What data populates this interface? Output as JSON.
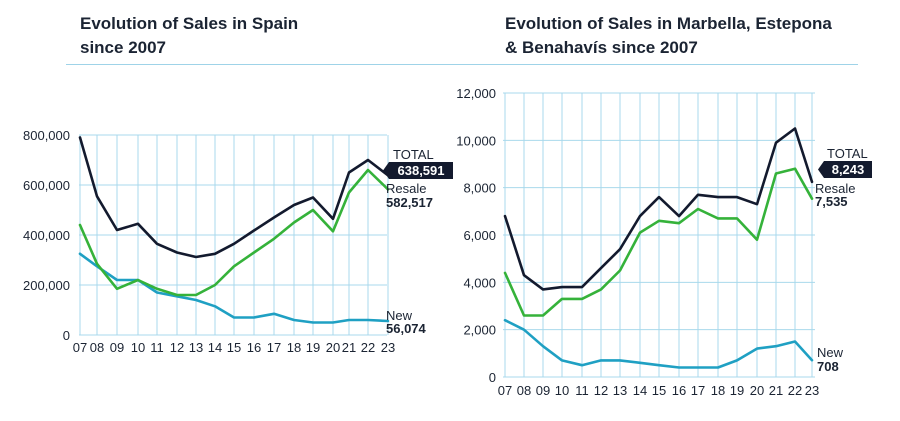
{
  "colors": {
    "total": "#131a2e",
    "resale": "#35b23a",
    "new": "#1fa0c3",
    "grid": "#a9d9ec",
    "badge": "#131a2e"
  },
  "chart_data": [
    {
      "type": "line",
      "title_line1": "Evolution of Sales in Spain",
      "title_line2": "since 2007",
      "categories": [
        "07",
        "08",
        "09",
        "10",
        "11",
        "12",
        "13",
        "14",
        "15",
        "16",
        "17",
        "18",
        "19",
        "20",
        "21",
        "22",
        "23"
      ],
      "ylim": [
        0,
        800000
      ],
      "yticks": [
        0,
        200000,
        400000,
        600000,
        800000
      ],
      "ytick_labels": [
        "0",
        "200,000",
        "400,000",
        "600,000",
        "800,000"
      ],
      "series": [
        {
          "key": "total",
          "name": "TOTAL",
          "value_label": "638,591",
          "values": [
            790000,
            555000,
            420000,
            445000,
            365000,
            330000,
            312000,
            325000,
            365000,
            418000,
            470000,
            520000,
            550000,
            465000,
            650000,
            700000,
            638591
          ]
        },
        {
          "key": "resale",
          "name": "Resale",
          "value_label": "582,517",
          "values": [
            440000,
            285000,
            185000,
            220000,
            185000,
            160000,
            160000,
            200000,
            275000,
            330000,
            385000,
            450000,
            500000,
            415000,
            570000,
            660000,
            582517
          ]
        },
        {
          "key": "new",
          "name": "New",
          "value_label": "56,074",
          "values": [
            325000,
            275000,
            220000,
            220000,
            170000,
            155000,
            140000,
            115000,
            70000,
            70000,
            85000,
            60000,
            50000,
            50000,
            60000,
            60000,
            56074
          ]
        }
      ]
    },
    {
      "type": "line",
      "title_line1": "Evolution of Sales in Marbella, Estepona",
      "title_line2": "& Benahavís since 2007",
      "categories": [
        "07",
        "08",
        "09",
        "10",
        "11",
        "12",
        "13",
        "14",
        "15",
        "16",
        "17",
        "18",
        "19",
        "20",
        "21",
        "22",
        "23"
      ],
      "ylim": [
        0,
        12000
      ],
      "yticks": [
        0,
        2000,
        4000,
        6000,
        8000,
        10000,
        12000
      ],
      "ytick_labels": [
        "0",
        "2,000",
        "4,000",
        "6,000",
        "8,000",
        "10,000",
        "12,000"
      ],
      "series": [
        {
          "key": "total",
          "name": "TOTAL",
          "value_label": "8,243",
          "values": [
            6800,
            4300,
            3700,
            3800,
            3800,
            4600,
            5400,
            6800,
            7600,
            6800,
            7700,
            7600,
            7600,
            7300,
            9900,
            10500,
            8243
          ]
        },
        {
          "key": "resale",
          "name": "Resale",
          "value_label": "7,535",
          "values": [
            4400,
            2600,
            2600,
            3300,
            3300,
            3700,
            4500,
            6100,
            6600,
            6500,
            7100,
            6700,
            6700,
            5800,
            8600,
            8800,
            7535
          ]
        },
        {
          "key": "new",
          "name": "New",
          "value_label": "708",
          "values": [
            2400,
            2000,
            1300,
            700,
            500,
            700,
            700,
            600,
            500,
            400,
            400,
            400,
            700,
            1200,
            1300,
            1500,
            708
          ]
        }
      ]
    }
  ]
}
